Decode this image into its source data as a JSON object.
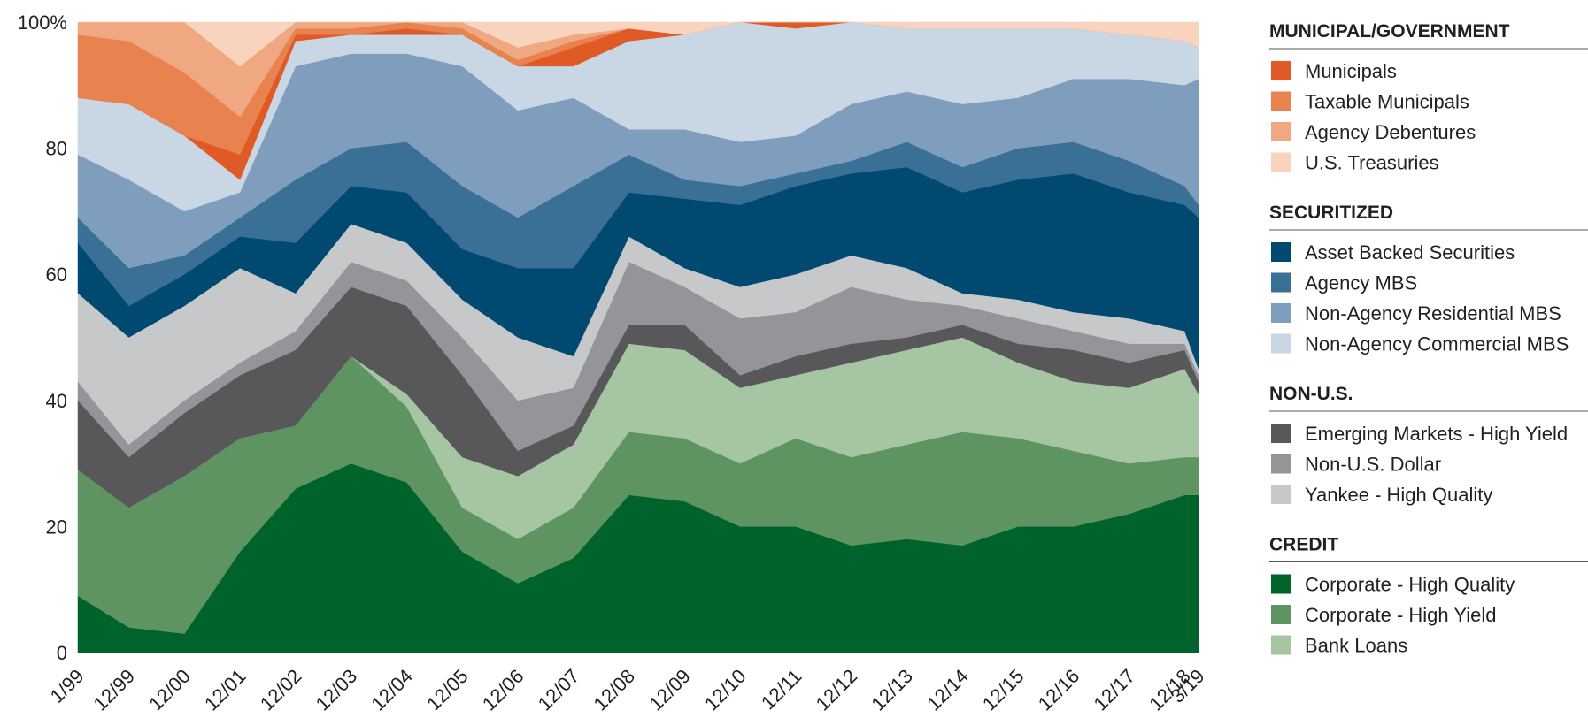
{
  "chart_data": {
    "type": "stacked_area",
    "categories": [
      "1/99",
      "12/99",
      "12/00",
      "12/01",
      "12/02",
      "12/03",
      "12/04",
      "12/05",
      "12/06",
      "12/07",
      "12/08",
      "12/09",
      "12/10",
      "12/11",
      "12/12",
      "12/13",
      "12/14",
      "12/15",
      "12/16",
      "12/17",
      "12/18",
      "3/19"
    ],
    "ylim": [
      0,
      100
    ],
    "yticks": [
      0,
      20,
      40,
      60,
      80,
      {
        "value": 100,
        "label": "100%"
      }
    ],
    "groups": [
      {
        "title": "MUNICIPAL/GOVERNMENT",
        "series": [
          {
            "name": "Municipals",
            "color": "#e05a25",
            "values": [
              0,
              0,
              0,
              4,
              1,
              0,
              1,
              0,
              0,
              3,
              2,
              0,
              0,
              1,
              0,
              0,
              0,
              0,
              0,
              0,
              0,
              0
            ]
          },
          {
            "name": "Taxable Municipals",
            "color": "#e8824f",
            "values": [
              10,
              10,
              10,
              6,
              1,
              1,
              1,
              1,
              1,
              1,
              0,
              0,
              0,
              0,
              0,
              0,
              0,
              0,
              0,
              0,
              0,
              0
            ]
          },
          {
            "name": "Agency Debentures",
            "color": "#f0a882",
            "values": [
              2,
              3,
              8,
              8,
              1,
              1,
              0,
              1,
              2,
              1,
              0,
              0,
              0,
              0,
              0,
              0,
              0,
              0,
              0,
              0,
              0,
              0
            ]
          },
          {
            "name": "U.S. Treasuries",
            "color": "#f8d3bd",
            "values": [
              0,
              0,
              0,
              7,
              0,
              0,
              0,
              0,
              4,
              2,
              1,
              2,
              0,
              0,
              0,
              1,
              1,
              1,
              1,
              2,
              3,
              4
            ]
          }
        ]
      },
      {
        "title": "SECURITIZED",
        "series": [
          {
            "name": "Asset Backed Securities",
            "color": "#004a72",
            "values": [
              8,
              5,
              5,
              5,
              8,
              6,
              8,
              8,
              11,
              14,
              7,
              11,
              13,
              14,
              13,
              16,
              16,
              19,
              22,
              20,
              20,
              24
            ]
          },
          {
            "name": "Agency MBS",
            "color": "#3a6f96",
            "values": [
              4,
              6,
              3,
              3,
              10,
              6,
              8,
              10,
              8,
              13,
              6,
              3,
              3,
              2,
              2,
              4,
              4,
              5,
              5,
              5,
              3,
              2
            ]
          },
          {
            "name": "Non-Agency Residential MBS",
            "color": "#7f9dbd",
            "values": [
              10,
              14,
              7,
              4,
              18,
              15,
              14,
              19,
              17,
              14,
              4,
              8,
              7,
              6,
              9,
              8,
              10,
              8,
              10,
              13,
              16,
              20
            ]
          },
          {
            "name": "Non-Agency Commercial MBS",
            "color": "#c9d6e3",
            "values": [
              9,
              12,
              12,
              2,
              4,
              3,
              3,
              5,
              7,
              5,
              14,
              15,
              19,
              17,
              13,
              10,
              12,
              11,
              8,
              7,
              7,
              5
            ]
          }
        ]
      },
      {
        "title": "NON-U.S.",
        "series": [
          {
            "name": "Emerging Markets - High Yield",
            "color": "#58585b",
            "values": [
              11,
              8,
              10,
              10,
              12,
              11,
              14,
              13,
              4,
              3,
              3,
              4,
              2,
              3,
              3,
              2,
              2,
              3,
              5,
              4,
              3,
              2
            ]
          },
          {
            "name": "Non-U.S. Dollar",
            "color": "#939598",
            "values": [
              3,
              2,
              2,
              2,
              3,
              4,
              4,
              6,
              8,
              6,
              10,
              6,
              9,
              7,
              9,
              6,
              3,
              4,
              3,
              3,
              1,
              1
            ]
          },
          {
            "name": "Yankee - High Quality",
            "color": "#c7c8ca",
            "values": [
              14,
              17,
              15,
              15,
              6,
              6,
              6,
              6,
              10,
              5,
              4,
              3,
              5,
              6,
              5,
              5,
              2,
              3,
              3,
              4,
              2,
              1
            ]
          }
        ]
      },
      {
        "title": "CREDIT",
        "series": [
          {
            "name": "Corporate - High Quality",
            "color": "#00632c",
            "values": [
              9,
              4,
              3,
              16,
              26,
              30,
              27,
              16,
              11,
              15,
              25,
              24,
              20,
              20,
              17,
              18,
              17,
              20,
              20,
              22,
              25,
              25
            ]
          },
          {
            "name": "Corporate - High Yield",
            "color": "#5e9462",
            "values": [
              20,
              19,
              25,
              18,
              10,
              17,
              12,
              7,
              7,
              8,
              10,
              10,
              10,
              14,
              14,
              15,
              18,
              14,
              12,
              8,
              6,
              6
            ]
          },
          {
            "name": "Bank Loans",
            "color": "#a6c5a3",
            "values": [
              0,
              0,
              0,
              0,
              0,
              0,
              2,
              8,
              10,
              10,
              14,
              14,
              12,
              10,
              15,
              15,
              15,
              12,
              11,
              12,
              14,
              10
            ]
          }
        ]
      }
    ]
  }
}
